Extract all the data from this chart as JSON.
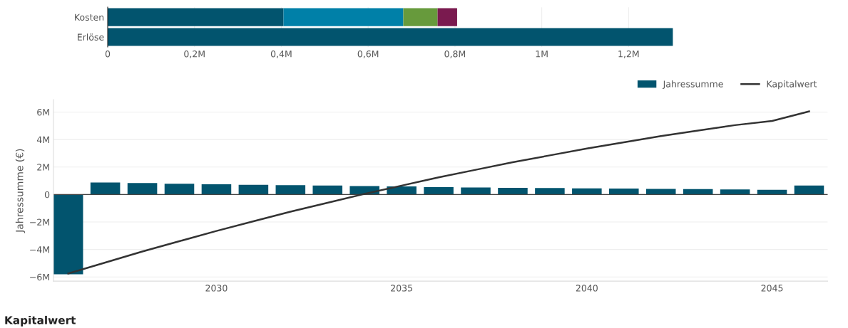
{
  "chart_data": [
    {
      "type": "bar",
      "orientation": "horizontal",
      "stacked": true,
      "categories": [
        "Kosten",
        "Erlöse"
      ],
      "series": [
        {
          "color": "#02546e",
          "values": [
            405000,
            1302000
          ]
        },
        {
          "color": "#0080a8",
          "values": [
            276000,
            null
          ]
        },
        {
          "color": "#679a3c",
          "values": [
            79000,
            null
          ]
        },
        {
          "color": "#7a1a4f",
          "values": [
            45000,
            null
          ]
        }
      ],
      "xlim": [
        0,
        1305000
      ],
      "xticks": [
        0,
        {
          "value": 200000,
          "label": "0,2M"
        },
        {
          "value": 400000,
          "label": "0,4M"
        },
        {
          "value": 600000,
          "label": "0,6M"
        },
        {
          "value": 800000,
          "label": "0,8M"
        },
        {
          "value": 1000000,
          "label": "1M"
        },
        {
          "value": 1200000,
          "label": "1,2M"
        }
      ],
      "grid": "x"
    },
    {
      "type": "bar",
      "ylabel": "Jahressumme (€)",
      "x": [
        2026,
        2027,
        2028,
        2029,
        2030,
        2031,
        2032,
        2033,
        2034,
        2035,
        2036,
        2037,
        2038,
        2039,
        2040,
        2041,
        2042,
        2043,
        2044,
        2045,
        2046
      ],
      "series": [
        {
          "name": "Jahressumme",
          "type": "bar",
          "color": "#02546e",
          "values": [
            -5800000,
            880000,
            830000,
            790000,
            750000,
            710000,
            680000,
            650000,
            620000,
            590000,
            540000,
            510000,
            490000,
            470000,
            450000,
            430000,
            410000,
            390000,
            370000,
            340000,
            660000
          ]
        },
        {
          "name": "Kapitalwert",
          "type": "line",
          "color": "#333333",
          "values": [
            -5750000,
            -4950000,
            -4150000,
            -3400000,
            -2650000,
            -1950000,
            -1250000,
            -600000,
            50000,
            650000,
            1250000,
            1800000,
            2350000,
            2850000,
            3350000,
            3800000,
            4250000,
            4650000,
            5050000,
            5350000,
            6050000
          ]
        }
      ],
      "xlim": [
        2025.6,
        2046.5
      ],
      "xticks": [
        2030,
        2035,
        2040,
        2045
      ],
      "ylim": [
        -6300000,
        6900000
      ],
      "yticks": [
        {
          "value": -6000000,
          "label": "−6M"
        },
        {
          "value": -4000000,
          "label": "−4M"
        },
        {
          "value": -2000000,
          "label": "−2M"
        },
        0,
        {
          "value": 2000000,
          "label": "2M"
        },
        {
          "value": 4000000,
          "label": "4M"
        },
        {
          "value": 6000000,
          "label": "6M"
        }
      ],
      "ref_lines": [
        {
          "axis": "y",
          "value": 0,
          "color": "#444444"
        }
      ],
      "grid": "y",
      "legend": "top right",
      "line_style": "solid",
      "marker": "none",
      "annotations": [
        "Kapitalwert"
      ]
    }
  ]
}
